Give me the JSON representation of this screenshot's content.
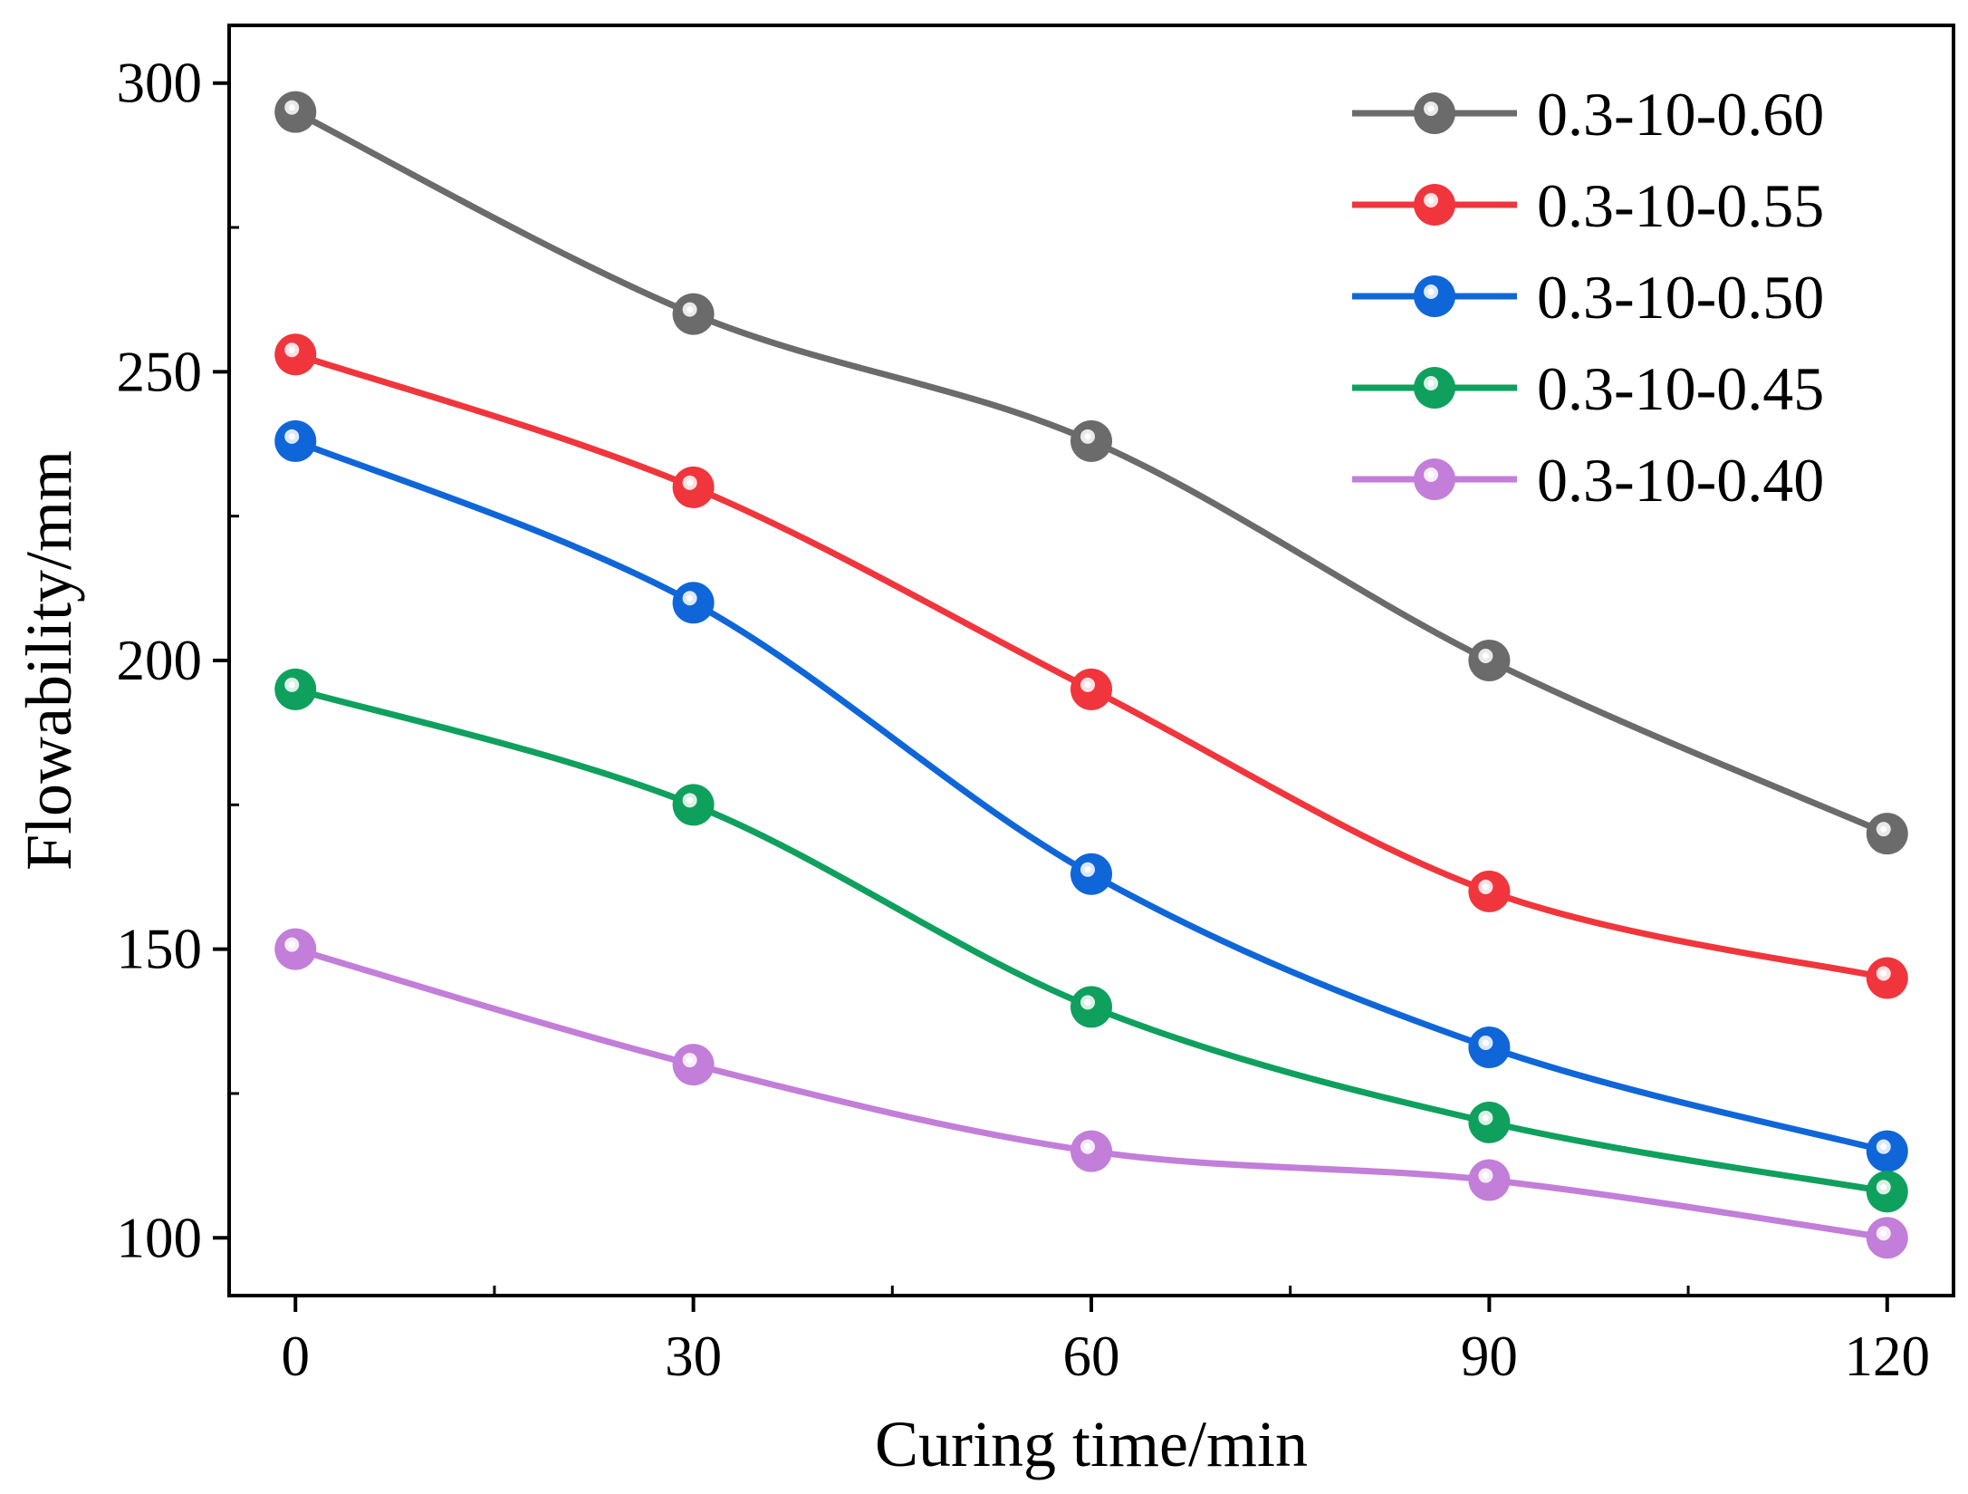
{
  "chart_data": {
    "type": "line",
    "title": "",
    "xlabel": "Curing time/min",
    "ylabel": "Flowability/mm",
    "x": [
      0,
      30,
      60,
      90,
      120
    ],
    "xlim": [
      -5,
      125
    ],
    "ylim": [
      90,
      310
    ],
    "xticks": [
      0,
      30,
      60,
      90,
      120
    ],
    "xtick_labels": [
      "0",
      "30",
      "60",
      "90",
      "120"
    ],
    "yticks": [
      100,
      150,
      200,
      250,
      300
    ],
    "ytick_labels": [
      "100",
      "150",
      "200",
      "250",
      "300"
    ],
    "grid": false,
    "legend_position": "top-right",
    "series": [
      {
        "name": "0.3-10-0.60",
        "color": "#6b6b6b",
        "values": [
          295,
          260,
          238,
          200,
          170
        ]
      },
      {
        "name": "0.3-10-0.55",
        "color": "#f0363c",
        "values": [
          253,
          230,
          195,
          160,
          145
        ]
      },
      {
        "name": "0.3-10-0.50",
        "color": "#0f66d8",
        "values": [
          238,
          210,
          163,
          133,
          115
        ]
      },
      {
        "name": "0.3-10-0.45",
        "color": "#0fa05e",
        "values": [
          195,
          175,
          140,
          120,
          108
        ]
      },
      {
        "name": "0.3-10-0.40",
        "color": "#c27ed9",
        "values": [
          150,
          130,
          115,
          110,
          100
        ]
      }
    ]
  }
}
